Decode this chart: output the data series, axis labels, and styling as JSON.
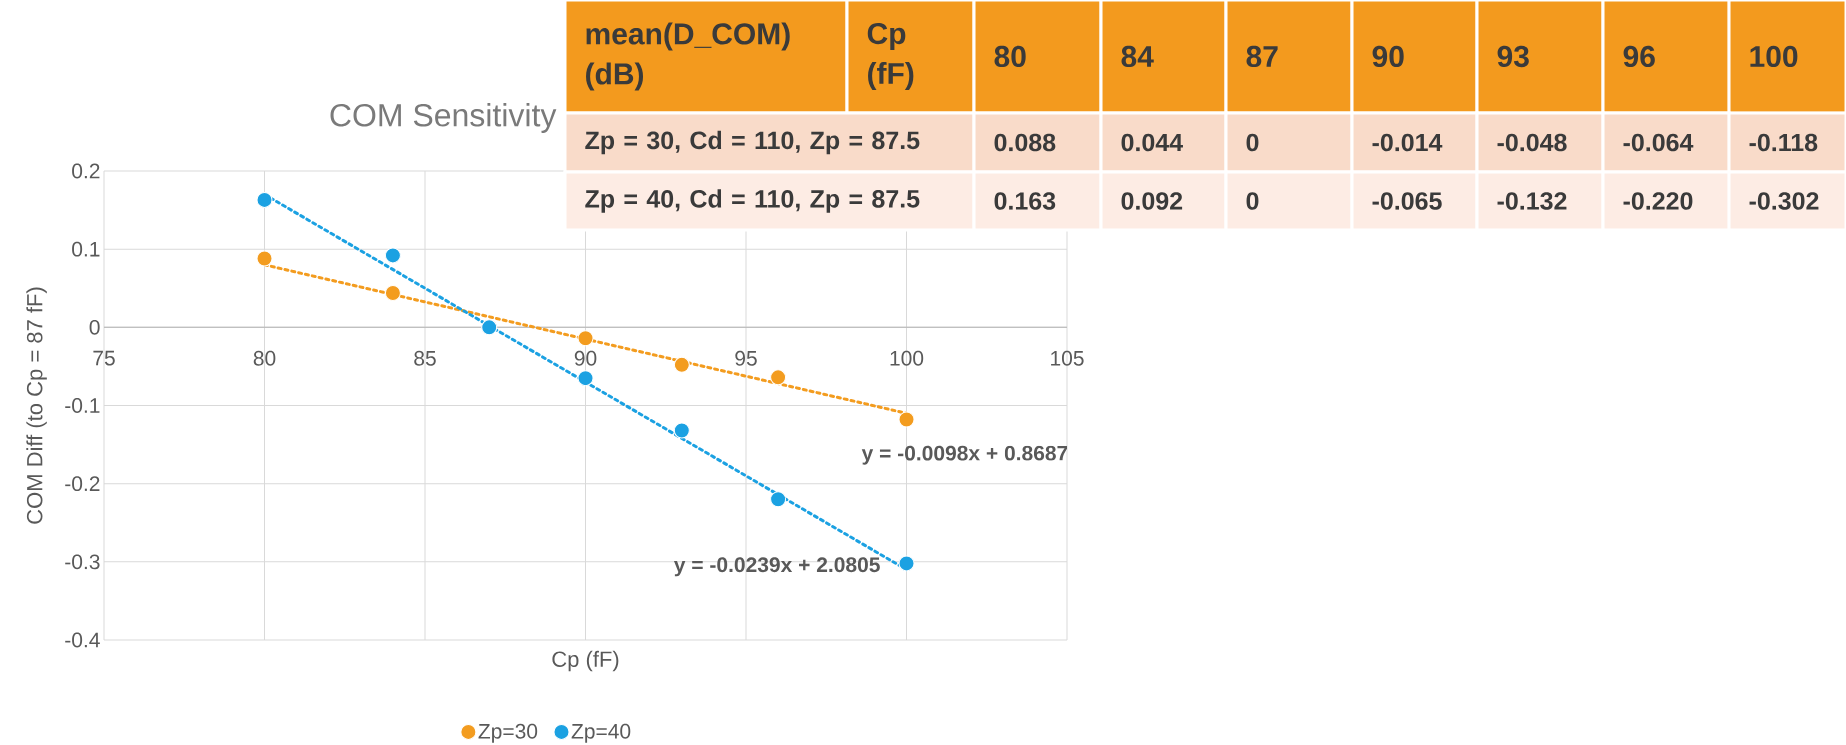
{
  "chart_data": [
    {
      "type": "scatter",
      "title": "COM Sensitivity",
      "xlabel": "Cp (fF)",
      "ylabel": "COM Diff (to Cp = 87 fF)",
      "xlim": [
        75,
        105
      ],
      "xticks": [
        75,
        80,
        85,
        90,
        95,
        100,
        105
      ],
      "ylim": [
        -0.4,
        0.2
      ],
      "yticks": [
        -0.4,
        -0.3,
        -0.2,
        -0.1,
        0,
        0.1,
        0.2
      ],
      "grid": true,
      "legend": "bottom",
      "marker": "circle",
      "series": [
        {
          "name": "Zp=30",
          "color": "#f39c1f",
          "x": [
            80,
            84,
            87,
            90,
            93,
            96,
            100
          ],
          "values": [
            0.088,
            0.044,
            0,
            -0.014,
            -0.048,
            -0.064,
            -0.118
          ]
        },
        {
          "name": "Zp=40",
          "color": "#1ba1e2",
          "x": [
            80,
            84,
            87,
            90,
            93,
            96,
            100
          ],
          "values": [
            0.163,
            0.092,
            0,
            -0.065,
            -0.132,
            -0.22,
            -0.302
          ]
        },
        {
          "type": "line",
          "marker": "none",
          "color": "#f39c1f",
          "line_style": "dotted",
          "x": [
            80,
            100
          ],
          "values": [
            0.08,
            -0.11
          ]
        },
        {
          "type": "line",
          "marker": "none",
          "color": "#1ba1e2",
          "line_style": "dotted",
          "x": [
            80,
            100
          ],
          "values": [
            0.17,
            -0.31
          ]
        }
      ],
      "annotations": [
        "y = -0.0098x + 0.8687",
        "y = -0.0239x + 2.0805"
      ]
    },
    {
      "type": "other",
      "categories": [
        "80",
        "84",
        "87",
        "90",
        "93",
        "96",
        "100"
      ],
      "y_categories": [
        "Zp = 30, Cd = 110, Zp = 87.5",
        "Zp = 40, Cd = 110, Zp = 87.5"
      ],
      "cell_labels": [
        [
          "0.088",
          "0.044",
          "0",
          "-0.014",
          "-0.048",
          "-0.064",
          "-0.118"
        ],
        [
          "0.163",
          "0.092",
          "0",
          "-0.065",
          "-0.132",
          "-0.220",
          "-0.302"
        ]
      ],
      "annotations": [
        "mean(D_COM) (dB)",
        "Cp (fF)"
      ]
    }
  ]
}
